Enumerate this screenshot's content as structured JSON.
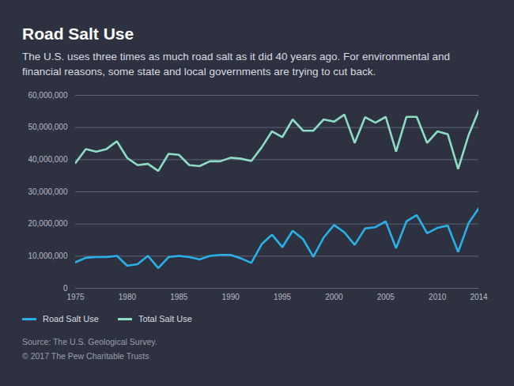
{
  "chart_data": {
    "type": "line",
    "title": "Road Salt Use",
    "subtitle": "The U.S. uses three times as much road salt as it did 40 years ago. For environmental and financial reasons, some state and local governments are trying to cut back.",
    "source": "Source: The U.S. Geological Survey.",
    "credit": "© 2017 The Pew Charitable Trusts",
    "x": [
      1975,
      1976,
      1977,
      1978,
      1979,
      1980,
      1981,
      1982,
      1983,
      1984,
      1985,
      1986,
      1987,
      1988,
      1989,
      1990,
      1991,
      1992,
      1993,
      1994,
      1995,
      1996,
      1997,
      1998,
      1999,
      2000,
      2001,
      2002,
      2003,
      2004,
      2005,
      2006,
      2007,
      2008,
      2009,
      2010,
      2011,
      2012,
      2013,
      2014
    ],
    "series": [
      {
        "name": "Road Salt Use",
        "color": "#2ab0e8",
        "values": [
          8100000,
          9500000,
          9700000,
          9700000,
          10100000,
          7000000,
          7500000,
          10100000,
          6300000,
          9700000,
          10100000,
          9700000,
          9000000,
          10100000,
          10400000,
          10400000,
          9300000,
          7900000,
          13700000,
          16700000,
          12800000,
          17900000,
          15300000,
          9800000,
          15800000,
          19700000,
          17400000,
          13500000,
          18600000,
          19000000,
          20800000,
          12500000,
          20800000,
          22800000,
          17100000,
          18800000,
          19500000,
          11300000,
          20200000,
          24900000
        ]
      },
      {
        "name": "Total Salt Use",
        "color": "#8ddcc4",
        "values": [
          39000000,
          43300000,
          42500000,
          43300000,
          45700000,
          40500000,
          38300000,
          38700000,
          36500000,
          41800000,
          41500000,
          38300000,
          38000000,
          39500000,
          39500000,
          40600000,
          40300000,
          39600000,
          43800000,
          48800000,
          47000000,
          52500000,
          49000000,
          49000000,
          52500000,
          51800000,
          54000000,
          45200000,
          53200000,
          51500000,
          53300000,
          42500000,
          53300000,
          53300000,
          45200000,
          48800000,
          47900000,
          37100000,
          47500000,
          55300000
        ]
      }
    ],
    "xlim": [
      1975,
      2014
    ],
    "xticks": [
      1975,
      1980,
      1985,
      1990,
      1995,
      2000,
      2005,
      2010,
      2014
    ],
    "ylim": [
      0,
      60000000
    ],
    "yticks": [
      0,
      {
        "value": 10000000,
        "label": "10,000,000"
      },
      {
        "value": 20000000,
        "label": "20,000,000"
      },
      {
        "value": 30000000,
        "label": "30,000,000"
      },
      {
        "value": 40000000,
        "label": "40,000,000"
      },
      {
        "value": 50000000,
        "label": "50,000,000"
      },
      {
        "value": 60000000,
        "label": "60,000,000"
      }
    ],
    "grid": true,
    "legend": "bottom-left"
  }
}
